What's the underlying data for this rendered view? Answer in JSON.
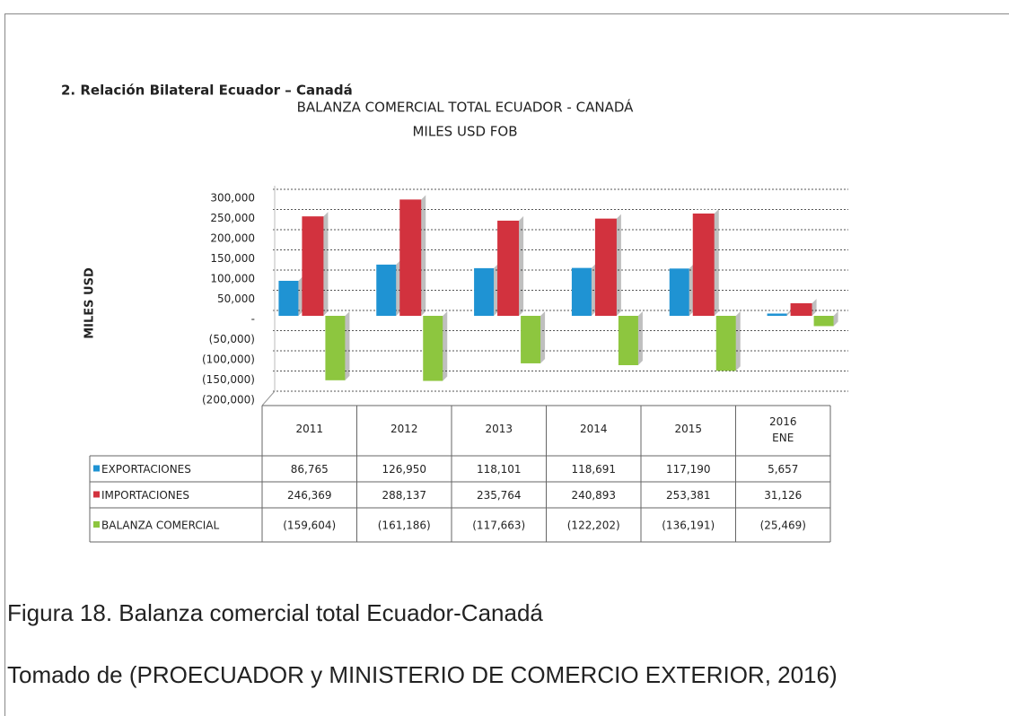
{
  "heading": "2. Relación Bilateral Ecuador – Canadá",
  "chart_data": {
    "type": "bar",
    "title": "BALANZA COMERCIAL TOTAL ECUADOR - CANADÁ",
    "subtitle": "MILES USD FOB",
    "y_label": "MILES USD",
    "categories": [
      "2011",
      "2012",
      "2013",
      "2014",
      "2015",
      "2016\nENE"
    ],
    "series": [
      {
        "name": "EXPORTACIONES",
        "color": "#1f93d3",
        "values": [
          86765,
          126950,
          118101,
          118691,
          117190,
          5657
        ],
        "value_labels": [
          "86,765",
          "126,950",
          "118,101",
          "118,691",
          "117,190",
          "5,657"
        ]
      },
      {
        "name": "IMPORTACIONES",
        "color": "#d2323e",
        "values": [
          246369,
          288137,
          235764,
          240893,
          253381,
          31126
        ],
        "value_labels": [
          "246,369",
          "288,137",
          "235,764",
          "240,893",
          "253,381",
          "31,126"
        ]
      },
      {
        "name": "BALANZA COMERCIAL",
        "color": "#8dc63f",
        "values": [
          -159604,
          -161186,
          -117663,
          -122202,
          -136191,
          -25469
        ],
        "value_labels": [
          "(159,604)",
          "(161,186)",
          "(117,663)",
          "(122,202)",
          "(136,191)",
          "(25,469)"
        ]
      }
    ],
    "ylim": [
      -200000,
      300000
    ],
    "yticks": [
      {
        "value": 300000,
        "label": "300,000"
      },
      {
        "value": 250000,
        "label": "250,000"
      },
      {
        "value": 200000,
        "label": "200,000"
      },
      {
        "value": 150000,
        "label": "150,000"
      },
      {
        "value": 100000,
        "label": "100,000"
      },
      {
        "value": 50000,
        "label": "50,000"
      },
      {
        "value": 0,
        "label": "-"
      },
      {
        "value": -50000,
        "label": "(50,000)"
      },
      {
        "value": -100000,
        "label": "(100,000)"
      },
      {
        "value": -150000,
        "label": "(150,000)"
      },
      {
        "value": -200000,
        "label": "(200,000)"
      }
    ],
    "grid": true
  },
  "caption": "Figura 18. Balanza comercial total Ecuador-Canadá",
  "source": "Tomado de (PROECUADOR y MINISTERIO DE COMERCIO EXTERIOR, 2016)"
}
